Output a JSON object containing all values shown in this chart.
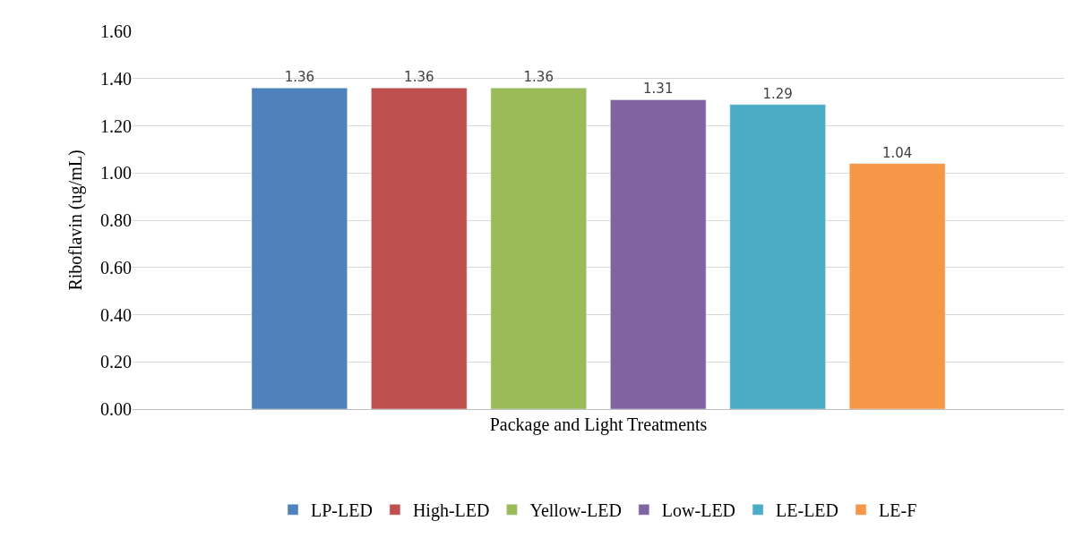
{
  "chart_data": {
    "type": "bar",
    "xlabel": "Package and Light Treatments",
    "ylabel": "Riboflavin (ug/mL)",
    "categories": [
      null
    ],
    "series": [
      {
        "name": "LP-LED",
        "color": "#4f81bd",
        "values": [
          1.36
        ]
      },
      {
        "name": "High-LED",
        "color": "#c0504d",
        "values": [
          1.36
        ]
      },
      {
        "name": "Yellow-LED",
        "color": "#9bbb59",
        "values": [
          1.36
        ]
      },
      {
        "name": "Low-LED",
        "color": "#8064a2",
        "values": [
          1.31
        ]
      },
      {
        "name": "LE-LED",
        "color": "#4bacc6",
        "values": [
          1.29
        ]
      },
      {
        "name": "LE-F",
        "color": "#f79646",
        "values": [
          1.04
        ]
      }
    ],
    "ylim": [
      0,
      1.6
    ],
    "yticks": [
      {
        "value": 0,
        "label": "0.00"
      },
      {
        "value": 0.2,
        "label": "0.20"
      },
      {
        "value": 0.4,
        "label": "0.40"
      },
      {
        "value": 0.6,
        "label": "0.60"
      },
      {
        "value": 0.8,
        "label": "0.80"
      },
      {
        "value": 1.0,
        "label": "1.00"
      },
      {
        "value": 1.2,
        "label": "1.20"
      },
      {
        "value": 1.4,
        "label": "1.40"
      },
      {
        "value": 1.6,
        "label": "1.60"
      }
    ],
    "grid": "y",
    "legend": "bottom",
    "data_labels": true
  }
}
